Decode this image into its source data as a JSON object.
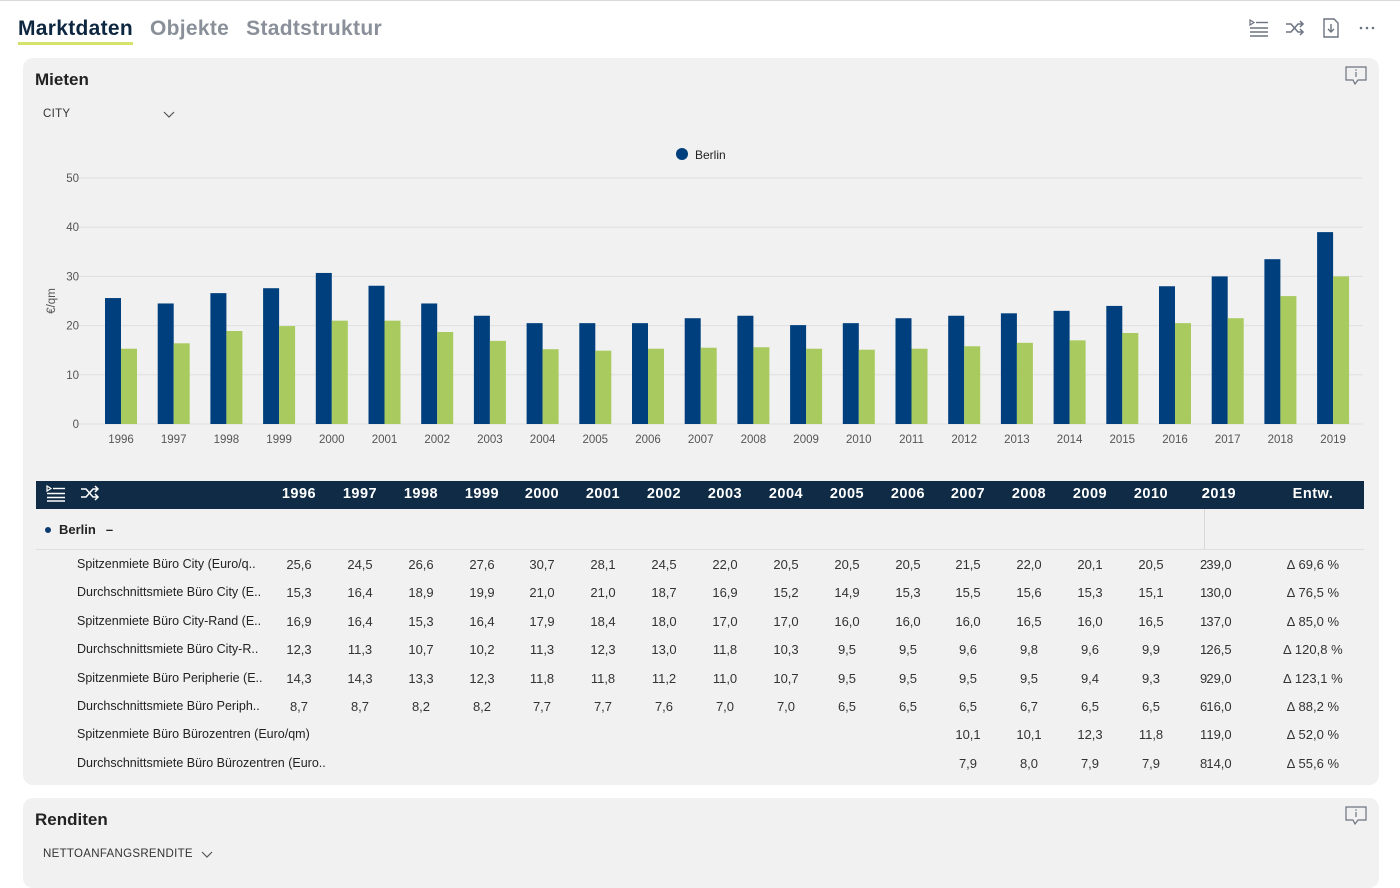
{
  "tabs": [
    "Marktdaten",
    "Objekte",
    "Stadtstruktur"
  ],
  "mieten": {
    "title": "Mieten",
    "dropdown": "CITY",
    "chart_data": {
      "type": "bar",
      "legend": [
        "Berlin"
      ],
      "ylabel": "€/qm",
      "ylim": [
        0,
        50
      ],
      "yticks": [
        "0",
        "10",
        "20",
        "30",
        "40",
        "50"
      ],
      "categories": [
        "1996",
        "1997",
        "1998",
        "1999",
        "2000",
        "2001",
        "2002",
        "2003",
        "2004",
        "2005",
        "2006",
        "2007",
        "2008",
        "2009",
        "2010",
        "2011",
        "2012",
        "2013",
        "2014",
        "2015",
        "2016",
        "2017",
        "2018",
        "2019"
      ],
      "series": [
        {
          "name": "Berlin",
          "color": "#003f7d",
          "values": [
            25.6,
            24.5,
            26.6,
            27.6,
            30.7,
            28.1,
            24.5,
            22.0,
            20.5,
            20.5,
            20.5,
            21.5,
            22.0,
            20.1,
            20.5,
            21.5,
            22.0,
            22.5,
            23.0,
            24.0,
            28.0,
            30.0,
            33.5,
            39.0
          ]
        },
        {
          "color": "#a8ca5e",
          "values": [
            15.3,
            16.4,
            18.9,
            19.9,
            21.0,
            21.0,
            18.7,
            16.9,
            15.2,
            14.9,
            15.3,
            15.5,
            15.6,
            15.3,
            15.1,
            15.3,
            15.8,
            16.5,
            17.0,
            18.5,
            20.5,
            21.5,
            26.0,
            30.0
          ]
        }
      ]
    },
    "table": {
      "years": [
        "1996",
        "1997",
        "1998",
        "1999",
        "2000",
        "2001",
        "2002",
        "2003",
        "2004",
        "2005",
        "2006",
        "2007",
        "2008",
        "2009",
        "2010",
        "2",
        "2019"
      ],
      "entw_header": "Entw.",
      "group": "Berlin",
      "group_toggle": "–",
      "rows": [
        {
          "label": "Spitzenmiete Büro City (Euro/q..",
          "values": [
            "25,6",
            "24,5",
            "26,6",
            "27,6",
            "30,7",
            "28,1",
            "24,5",
            "22,0",
            "20,5",
            "20,5",
            "20,5",
            "21,5",
            "22,0",
            "20,1",
            "20,5",
            "2",
            "39,0"
          ],
          "entw": "∆ 69,6 %"
        },
        {
          "label": "Durchschnittsmiete Büro City (E..",
          "values": [
            "15,3",
            "16,4",
            "18,9",
            "19,9",
            "21,0",
            "21,0",
            "18,7",
            "16,9",
            "15,2",
            "14,9",
            "15,3",
            "15,5",
            "15,6",
            "15,3",
            "15,1",
            "1",
            "30,0"
          ],
          "entw": "∆ 76,5 %"
        },
        {
          "label": "Spitzenmiete Büro City-Rand (E..",
          "values": [
            "16,9",
            "16,4",
            "15,3",
            "16,4",
            "17,9",
            "18,4",
            "18,0",
            "17,0",
            "17,0",
            "16,0",
            "16,0",
            "16,0",
            "16,5",
            "16,0",
            "16,5",
            "1",
            "37,0"
          ],
          "entw": "∆ 85,0 %"
        },
        {
          "label": "Durchschnittsmiete Büro City-R..",
          "values": [
            "12,3",
            "11,3",
            "10,7",
            "10,2",
            "11,3",
            "12,3",
            "13,0",
            "11,8",
            "10,3",
            "9,5",
            "9,5",
            "9,6",
            "9,8",
            "9,6",
            "9,9",
            "1",
            "26,5"
          ],
          "entw": "∆ 120,8 %"
        },
        {
          "label": "Spitzenmiete Büro Peripherie (E..",
          "values": [
            "14,3",
            "14,3",
            "13,3",
            "12,3",
            "11,8",
            "11,8",
            "11,2",
            "11,0",
            "10,7",
            "9,5",
            "9,5",
            "9,5",
            "9,5",
            "9,4",
            "9,3",
            "9",
            "29,0"
          ],
          "entw": "∆ 123,1 %"
        },
        {
          "label": "Durchschnittsmiete Büro Periph..",
          "values": [
            "8,7",
            "8,7",
            "8,2",
            "8,2",
            "7,7",
            "7,7",
            "7,6",
            "7,0",
            "7,0",
            "6,5",
            "6,5",
            "6,5",
            "6,7",
            "6,5",
            "6,5",
            "6",
            "16,0"
          ],
          "entw": "∆ 88,2 %"
        },
        {
          "label": "Spitzenmiete Büro Bürozentren (Euro/qm)",
          "values": [
            "",
            "",
            "",
            "",
            "",
            "",
            "",
            "",
            "",
            "",
            "",
            "10,1",
            "10,1",
            "12,3",
            "11,8",
            "1",
            "19,0"
          ],
          "entw": "∆ 52,0 %"
        },
        {
          "label": "Durchschnittsmiete Büro Bürozentren (Euro..",
          "values": [
            "",
            "",
            "",
            "",
            "",
            "",
            "",
            "",
            "",
            "",
            "",
            "7,9",
            "8,0",
            "7,9",
            "7,9",
            "8",
            "14,0"
          ],
          "entw": "∆ 55,6 %"
        }
      ]
    }
  },
  "renditen": {
    "title": "Renditen",
    "dropdown": "NETTOANFANGSRENDITE"
  }
}
